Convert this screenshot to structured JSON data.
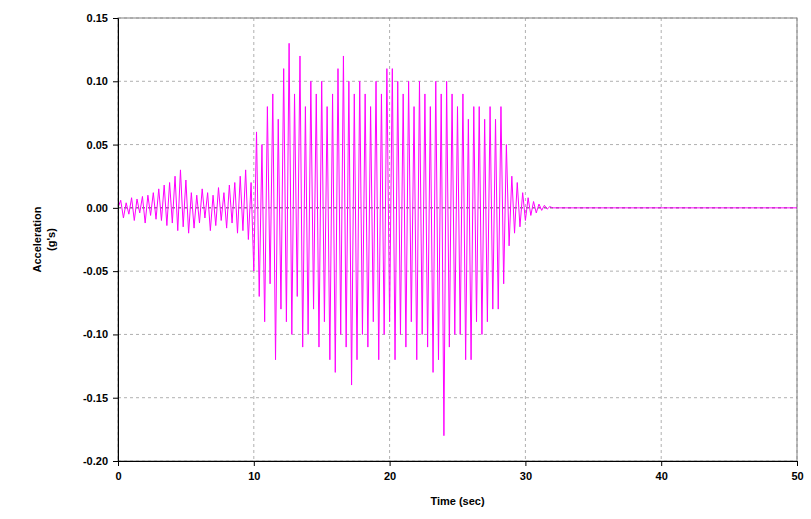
{
  "chart_data": {
    "type": "line",
    "x_label": "Time (sec)",
    "y_label": [
      "Acceleration",
      "(g's)"
    ],
    "color": "#ff00ff",
    "grid": true,
    "xlim": [
      0,
      50
    ],
    "xticks": [
      0,
      10,
      20,
      30,
      40,
      50
    ],
    "ylim": [
      -0.2,
      0.15
    ],
    "yticks": [
      {
        "value": -0.2,
        "label": "-0.20"
      },
      -0.15,
      {
        "value": -0.1,
        "label": "-0.10"
      },
      -0.05,
      {
        "value": 0,
        "label": "0.00"
      },
      0.05,
      {
        "value": 0.1,
        "label": "0.10"
      },
      0.15
    ],
    "x": [
      0,
      0.2,
      0.4,
      0.6,
      0.8,
      1,
      1.2,
      1.4,
      1.6,
      1.8,
      2,
      2.2,
      2.4,
      2.6,
      2.8,
      3,
      3.2,
      3.4,
      3.6,
      3.8,
      4,
      4.2,
      4.4,
      4.6,
      4.8,
      5,
      5.2,
      5.4,
      5.6,
      5.8,
      6,
      6.2,
      6.4,
      6.6,
      6.8,
      7,
      7.2,
      7.4,
      7.6,
      7.8,
      8,
      8.2,
      8.4,
      8.6,
      8.8,
      9,
      9.2,
      9.4,
      9.6,
      9.8,
      10,
      10.2,
      10.4,
      10.6,
      10.8,
      11,
      11.2,
      11.4,
      11.6,
      11.8,
      12,
      12.2,
      12.4,
      12.6,
      12.8,
      13,
      13.2,
      13.4,
      13.6,
      13.8,
      14,
      14.2,
      14.4,
      14.6,
      14.8,
      15,
      15.2,
      15.4,
      15.6,
      15.8,
      16,
      16.2,
      16.4,
      16.6,
      16.8,
      17,
      17.2,
      17.4,
      17.6,
      17.8,
      18,
      18.2,
      18.4,
      18.6,
      18.8,
      19,
      19.2,
      19.4,
      19.6,
      19.8,
      20,
      20.2,
      20.4,
      20.6,
      20.8,
      21,
      21.2,
      21.4,
      21.6,
      21.8,
      22,
      22.2,
      22.4,
      22.6,
      22.8,
      23,
      23.2,
      23.4,
      23.6,
      23.8,
      24,
      24.2,
      24.4,
      24.6,
      24.8,
      25,
      25.2,
      25.4,
      25.6,
      25.8,
      26,
      26.2,
      26.4,
      26.6,
      26.8,
      27,
      27.2,
      27.4,
      27.6,
      27.8,
      28,
      28.2,
      28.4,
      28.6,
      28.8,
      29,
      29.2,
      29.4,
      29.6,
      29.8,
      30,
      30.2,
      30.4,
      30.6,
      30.8,
      31,
      31.2,
      31.4,
      31.6,
      31.8,
      32,
      50
    ],
    "values": [
      0,
      0.006,
      -0.008,
      0.004,
      -0.005,
      0.008,
      -0.01,
      0.007,
      -0.004,
      0.009,
      -0.012,
      0.01,
      -0.006,
      0.012,
      -0.009,
      0.015,
      -0.01,
      0.018,
      -0.014,
      0.02,
      -0.012,
      0.025,
      -0.018,
      0.03,
      -0.015,
      0.022,
      -0.02,
      0.012,
      -0.016,
      0.01,
      -0.012,
      0.015,
      -0.008,
      0.012,
      -0.018,
      0.01,
      -0.014,
      0.016,
      -0.01,
      0.012,
      -0.016,
      0.018,
      -0.012,
      0.02,
      -0.02,
      0.025,
      -0.018,
      0.03,
      -0.025,
      0.02,
      -0.05,
      0.06,
      -0.07,
      0.05,
      -0.09,
      0.08,
      -0.06,
      0.09,
      -0.12,
      0.07,
      -0.08,
      0.11,
      -0.09,
      0.13,
      -0.1,
      0.09,
      -0.07,
      0.12,
      -0.11,
      0.08,
      -0.1,
      0.1,
      -0.08,
      0.09,
      -0.11,
      0.1,
      -0.09,
      0.08,
      -0.12,
      0.09,
      -0.13,
      0.11,
      -0.1,
      0.12,
      -0.11,
      0.1,
      -0.14,
      0.09,
      -0.12,
      0.1,
      -0.1,
      0.09,
      -0.11,
      0.08,
      -0.09,
      0.1,
      -0.12,
      0.09,
      -0.1,
      0.11,
      -0.09,
      0.11,
      -0.12,
      0.1,
      -0.1,
      0.09,
      -0.11,
      0.1,
      -0.09,
      0.08,
      -0.12,
      0.1,
      -0.1,
      0.09,
      -0.11,
      0.08,
      -0.13,
      0.1,
      -0.12,
      0.09,
      -0.18,
      0.1,
      -0.11,
      0.09,
      -0.1,
      0.08,
      -0.1,
      0.09,
      -0.12,
      0.07,
      -0.12,
      0.08,
      -0.09,
      0.08,
      -0.1,
      0.07,
      -0.09,
      0.08,
      -0.08,
      0.07,
      -0.08,
      0.08,
      -0.06,
      0.05,
      -0.03,
      0.025,
      -0.02,
      0.02,
      -0.015,
      0.012,
      -0.01,
      0.008,
      -0.006,
      0.005,
      -0.004,
      0.003,
      -0.002,
      0.002,
      -0.001,
      0.001,
      0,
      0
    ]
  }
}
